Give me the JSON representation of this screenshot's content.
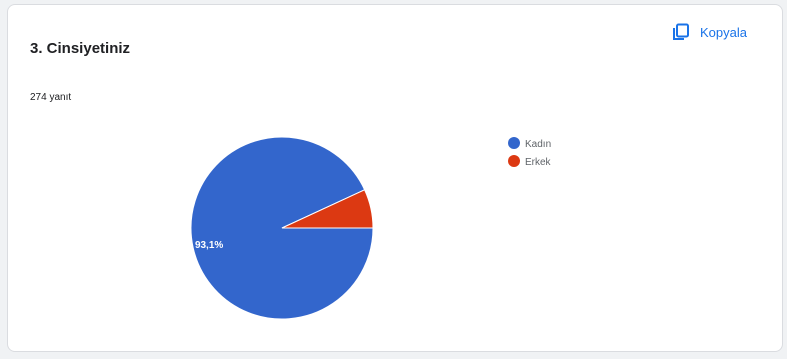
{
  "question": {
    "title": "3. Cinsiyetiniz",
    "responses": "274 yanıt"
  },
  "toolbar": {
    "copy_label": "Kopyala",
    "copy_icon": "copy-icon"
  },
  "chart_data": {
    "type": "pie",
    "categories": [
      "Kadın",
      "Erkek"
    ],
    "values": [
      93.1,
      6.9
    ],
    "colors": [
      "#3366cc",
      "#dc3912"
    ],
    "data_labels": [
      "93,1%",
      ""
    ],
    "legend_position": "right"
  }
}
